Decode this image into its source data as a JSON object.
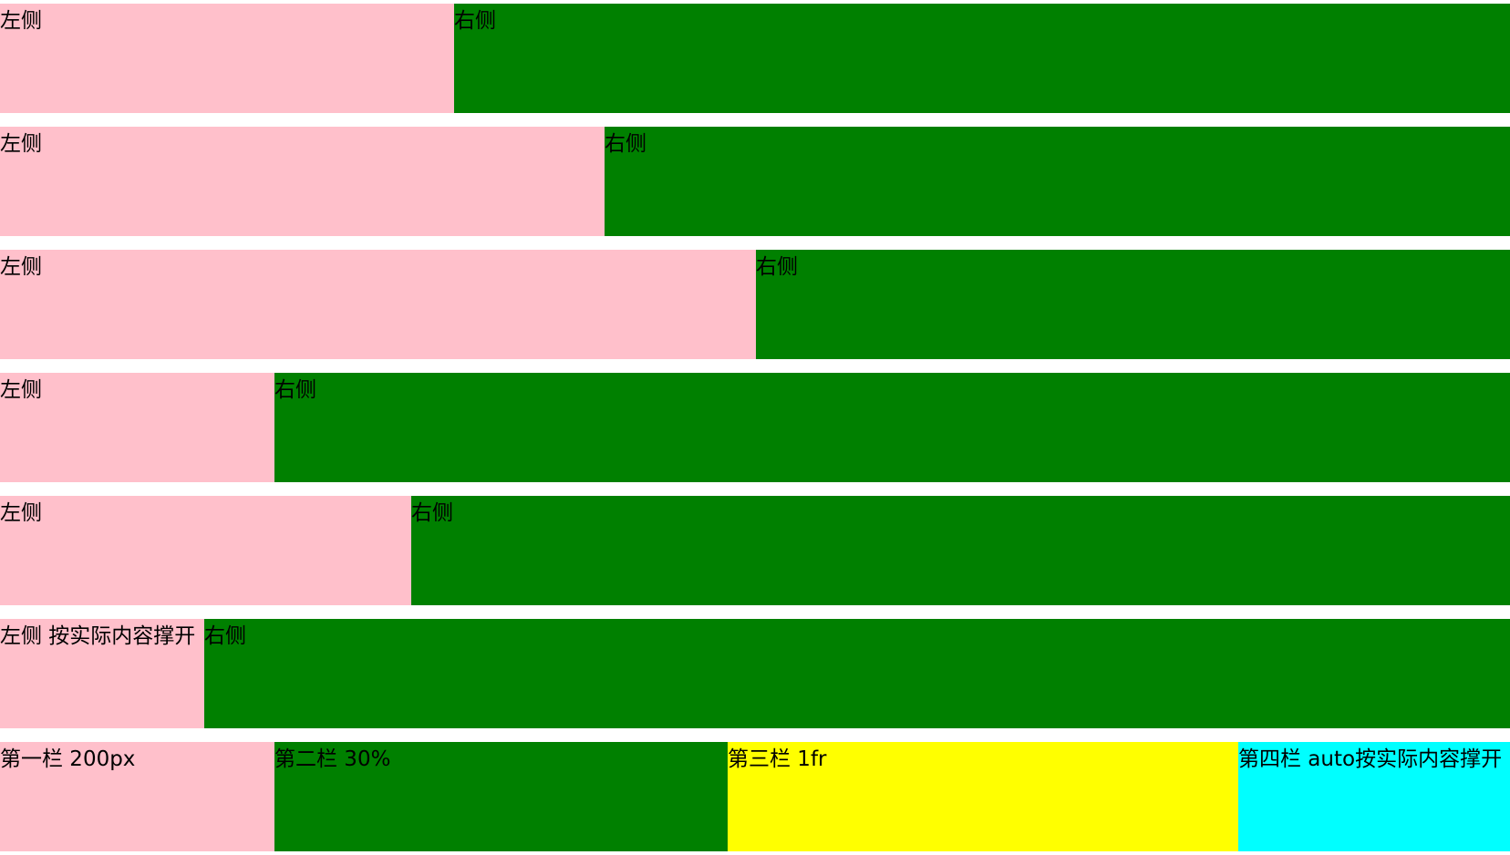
{
  "rows": [
    {
      "left_label": "左侧",
      "right_label": "右侧"
    },
    {
      "left_label": "左侧",
      "right_label": "右侧"
    },
    {
      "left_label": "左侧",
      "right_label": "右侧"
    },
    {
      "left_label": "左侧",
      "right_label": "右侧"
    },
    {
      "left_label": "左侧",
      "right_label": "右侧"
    },
    {
      "left_label": "左侧 按实际内容撑开",
      "right_label": "右侧"
    }
  ],
  "four_column_row": {
    "col1": "第一栏 200px",
    "col2": "第二栏 30%",
    "col3": "第三栏 1fr",
    "col4": "第四栏 auto按实际内容撑开"
  },
  "colors": {
    "left": "#ffc0cb",
    "right": "#008000",
    "third": "#ffff00",
    "fourth": "#00ffff"
  }
}
